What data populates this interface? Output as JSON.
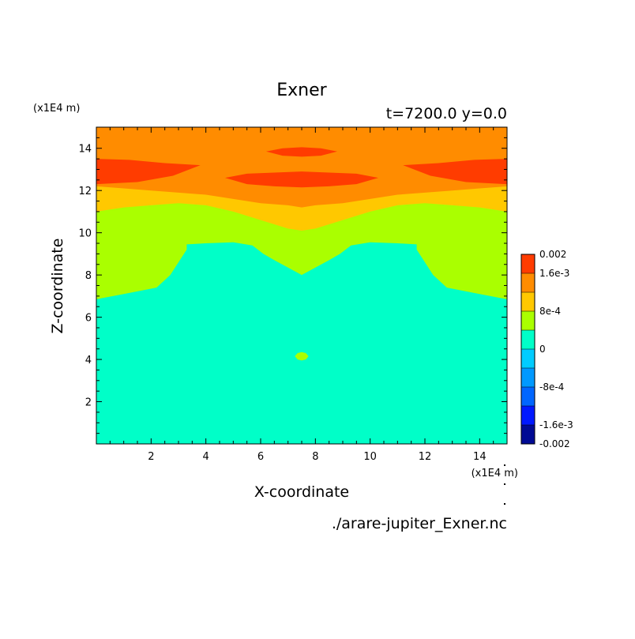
{
  "chart_data": {
    "type": "heatmap",
    "title": "Exner",
    "subtitle": "t=7200.0 y=0.0",
    "xlabel": "X-coordinate",
    "ylabel": "Z-coordinate",
    "x_unit": "(x1E4 m)",
    "y_unit": "(x1E4 m)",
    "source_label": "./arare-jupiter_Exner.nc",
    "xlim": [
      0,
      15
    ],
    "ylim": [
      0,
      15
    ],
    "x_ticks": [
      2,
      4,
      6,
      8,
      10,
      12,
      14
    ],
    "y_ticks": [
      2,
      4,
      6,
      8,
      10,
      12,
      14
    ],
    "levels": [
      -0.002,
      -0.0016,
      -0.0012,
      -0.0008,
      -0.0004,
      0,
      0.0004,
      0.0008,
      0.0012,
      0.0016,
      0.002
    ],
    "level_colors": [
      "#000a94",
      "#0019ff",
      "#0066ff",
      "#0099ff",
      "#00ccff",
      "#00ffc8",
      "#aaff00",
      "#ffc800",
      "#ff8c00",
      "#ff3c00"
    ],
    "colorbar_labels": [
      {
        "text": "0.002",
        "value": 0.002
      },
      {
        "text": "1.6e-3",
        "value": 0.0016
      },
      {
        "text": "8e-4",
        "value": 0.0008
      },
      {
        "text": "0",
        "value": 0
      },
      {
        "text": "-8e-4",
        "value": -0.0008
      },
      {
        "text": "-1.6e-3",
        "value": -0.0016
      },
      {
        "text": "-0.002",
        "value": -0.002
      }
    ],
    "contour_boundaries": [
      {
        "name": "0",
        "points": [
          [
            0,
            6.85
          ],
          [
            1,
            7.1
          ],
          [
            2.2,
            7.4
          ],
          [
            2.7,
            8.0
          ],
          [
            3.3,
            9.2
          ],
          [
            3.3,
            9.45
          ],
          [
            4,
            9.5
          ],
          [
            5,
            9.55
          ],
          [
            5.7,
            9.4
          ],
          [
            6.1,
            9.0
          ],
          [
            6.5,
            8.7
          ],
          [
            7,
            8.35
          ],
          [
            7.5,
            8.0
          ],
          [
            8,
            8.35
          ],
          [
            8.5,
            8.7
          ],
          [
            8.9,
            9.0
          ],
          [
            9.3,
            9.4
          ],
          [
            10,
            9.55
          ],
          [
            11,
            9.5
          ],
          [
            11.7,
            9.45
          ],
          [
            11.7,
            9.2
          ],
          [
            12.3,
            8.0
          ],
          [
            12.8,
            7.4
          ],
          [
            14,
            7.1
          ],
          [
            15,
            6.85
          ]
        ]
      },
      {
        "name": "4e-4",
        "points": [
          [
            0,
            11.0
          ],
          [
            1,
            11.2
          ],
          [
            2,
            11.3
          ],
          [
            3,
            11.4
          ],
          [
            4,
            11.3
          ],
          [
            5,
            11.0
          ],
          [
            6,
            10.6
          ],
          [
            7,
            10.2
          ],
          [
            7.5,
            10.1
          ],
          [
            8,
            10.2
          ],
          [
            9,
            10.6
          ],
          [
            10,
            11.0
          ],
          [
            11,
            11.3
          ],
          [
            12,
            11.4
          ],
          [
            13,
            11.3
          ],
          [
            14,
            11.2
          ],
          [
            15,
            11.0
          ]
        ]
      },
      {
        "name": "8e-4",
        "points": [
          [
            0,
            12.2
          ],
          [
            1,
            12.1
          ],
          [
            2,
            12.0
          ],
          [
            3,
            11.9
          ],
          [
            4,
            11.8
          ],
          [
            5,
            11.6
          ],
          [
            6,
            11.4
          ],
          [
            7,
            11.3
          ],
          [
            7.5,
            11.2
          ],
          [
            8,
            11.3
          ],
          [
            9,
            11.4
          ],
          [
            10,
            11.6
          ],
          [
            11,
            11.8
          ],
          [
            12,
            11.9
          ],
          [
            13,
            12.0
          ],
          [
            14,
            12.1
          ],
          [
            15,
            12.2
          ]
        ]
      }
    ],
    "closed_regions": [
      {
        "level": "1.2e-3 to 1.6e-3",
        "points": [
          [
            0,
            13.5
          ],
          [
            1.2,
            13.45
          ],
          [
            2.5,
            13.3
          ],
          [
            3.8,
            13.2
          ],
          [
            2.8,
            12.7
          ],
          [
            1.5,
            12.4
          ],
          [
            0,
            12.3
          ]
        ]
      },
      {
        "level": "1.2e-3 to 1.6e-3",
        "points": [
          [
            15,
            13.5
          ],
          [
            13.8,
            13.45
          ],
          [
            12.5,
            13.3
          ],
          [
            11.2,
            13.2
          ],
          [
            12.2,
            12.7
          ],
          [
            13.5,
            12.4
          ],
          [
            15,
            12.3
          ]
        ]
      },
      {
        "level": "1.2e-3 to 1.6e-3",
        "points": [
          [
            4.7,
            12.6
          ],
          [
            5.5,
            12.8
          ],
          [
            6.5,
            12.85
          ],
          [
            7.5,
            12.9
          ],
          [
            8.5,
            12.85
          ],
          [
            9.5,
            12.8
          ],
          [
            10.3,
            12.6
          ],
          [
            9.5,
            12.3
          ],
          [
            8.5,
            12.2
          ],
          [
            7.5,
            12.15
          ],
          [
            6.5,
            12.2
          ],
          [
            5.5,
            12.3
          ]
        ]
      },
      {
        "level": "1.2e-3 to 1.6e-3",
        "points": [
          [
            6.2,
            13.85
          ],
          [
            6.8,
            14.0
          ],
          [
            7.5,
            14.05
          ],
          [
            8.2,
            14.0
          ],
          [
            8.8,
            13.85
          ],
          [
            8.2,
            13.65
          ],
          [
            7.5,
            13.6
          ],
          [
            6.8,
            13.65
          ]
        ]
      },
      {
        "level": "0 to 4e-4",
        "points": [
          [
            7.25,
            4.15
          ],
          [
            7.35,
            4.3
          ],
          [
            7.5,
            4.35
          ],
          [
            7.65,
            4.3
          ],
          [
            7.75,
            4.15
          ],
          [
            7.65,
            4.0
          ],
          [
            7.5,
            3.95
          ],
          [
            7.35,
            4.0
          ]
        ]
      }
    ]
  }
}
